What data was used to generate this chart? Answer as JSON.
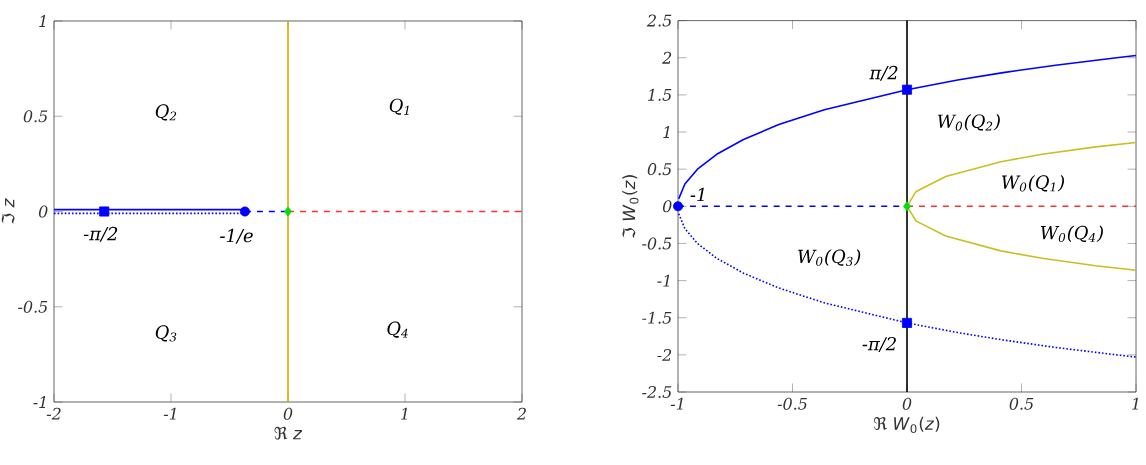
{
  "chart_data": [
    {
      "type": "line",
      "xlabel": "ℜ *z*",
      "ylabel": "ℑ *z*",
      "xlim": [
        -2,
        2
      ],
      "ylim": [
        -1,
        1
      ],
      "xticks": [
        -2,
        -1,
        0,
        1,
        2
      ],
      "yticks": [
        -1,
        -0.5,
        0,
        0.5,
        1
      ],
      "series": [
        {
          "color": "#0000ff",
          "line_style": "solid",
          "x": [
            -2,
            -0.3679
          ],
          "values": [
            0.01,
            0.01
          ]
        },
        {
          "color": "#0000ff",
          "line_style": "dotted",
          "x": [
            -2,
            -0.3679
          ],
          "values": [
            -0.01,
            -0.01
          ]
        },
        {
          "color": "#0000ff",
          "line_style": "dashed",
          "x": [
            -0.3679,
            0
          ],
          "values": [
            0,
            0
          ]
        },
        {
          "color": "#ff3030",
          "line_style": "dashed",
          "x": [
            0,
            2
          ],
          "values": [
            0,
            0
          ]
        },
        {
          "color": "#d4b000",
          "line_style": "solid",
          "x": [
            0,
            0
          ],
          "values": [
            -1,
            1
          ]
        },
        {
          "type": "scatter",
          "color": "#0000ff",
          "marker": "square",
          "x": [
            -1.5708
          ],
          "values": [
            0
          ]
        },
        {
          "type": "scatter",
          "color": "#0000ff",
          "marker": "circle",
          "x": [
            -0.3679
          ],
          "values": [
            0
          ]
        },
        {
          "type": "scatter",
          "color": "#00e000",
          "marker": "diamond",
          "x": [
            0
          ],
          "values": [
            0
          ]
        }
      ],
      "annotations": [
        "Q$_{2}$",
        "Q$_{1}$",
        "Q$_{3}$",
        "Q$_{4}$",
        "-π/2",
        "-1/e"
      ]
    },
    {
      "type": "line",
      "xlabel": "ℜ *W*$_{0}$(*z*)",
      "ylabel": "ℑ *W*$_{0}$(*z*)",
      "xlim": [
        -1,
        1
      ],
      "ylim": [
        -2.5,
        2.5
      ],
      "xticks": [
        -1,
        -0.5,
        0,
        0.5,
        1
      ],
      "yticks": [
        -2.5,
        -2,
        -1.5,
        -1,
        -0.5,
        0,
        0.5,
        1,
        1.5,
        2,
        2.5
      ],
      "series": [
        {
          "color": "#0000ff",
          "line_style": "solid",
          "x": [
            -0.997,
            -0.97,
            -0.915,
            -0.831,
            -0.714,
            -0.56,
            -0.361,
            0,
            0.221,
            0.42,
            0.649,
            0.915,
            1.0
          ],
          "values": [
            0.1,
            0.3,
            0.5,
            0.7,
            0.9,
            1.1,
            1.3,
            1.57,
            1.7,
            1.8,
            1.9,
            2.0,
            2.03
          ]
        },
        {
          "color": "#0000ff",
          "line_style": "dotted",
          "x": [
            -0.997,
            -0.97,
            -0.915,
            -0.831,
            -0.714,
            -0.56,
            -0.361,
            0,
            0.221,
            0.42,
            0.649,
            0.915,
            1.0
          ],
          "values": [
            -0.1,
            -0.3,
            -0.5,
            -0.7,
            -0.9,
            -1.1,
            -1.3,
            -1.57,
            -1.7,
            -1.8,
            -1.9,
            -2.0,
            -2.03
          ]
        },
        {
          "color": "#0000ff",
          "line_style": "dashed",
          "x": [
            -1,
            0
          ],
          "values": [
            0,
            0
          ]
        },
        {
          "color": "#ff3030",
          "line_style": "dashed",
          "x": [
            0,
            1
          ],
          "values": [
            0,
            0
          ]
        },
        {
          "color": "#c8c020",
          "line_style": "solid",
          "x": [
            0,
            0.04,
            0.169,
            0.41,
            0.59,
            0.824,
            1.0
          ],
          "values": [
            0,
            0.2,
            0.4,
            0.6,
            0.7,
            0.8,
            0.86
          ]
        },
        {
          "color": "#c8c020",
          "line_style": "solid",
          "x": [
            0,
            0.04,
            0.169,
            0.41,
            0.59,
            0.824,
            1.0
          ],
          "values": [
            0,
            -0.2,
            -0.4,
            -0.6,
            -0.7,
            -0.8,
            -0.86
          ]
        },
        {
          "color": "#000000",
          "line_style": "solid",
          "x": [
            0,
            0
          ],
          "values": [
            -2.5,
            2.5
          ]
        },
        {
          "type": "scatter",
          "color": "#0000ff",
          "marker": "square",
          "x": [
            0,
            0
          ],
          "values": [
            1.57,
            -1.57
          ]
        },
        {
          "type": "scatter",
          "color": "#0000ff",
          "marker": "circle",
          "x": [
            -1
          ],
          "values": [
            0
          ]
        },
        {
          "type": "scatter",
          "color": "#00e000",
          "marker": "diamond",
          "x": [
            0
          ],
          "values": [
            0
          ]
        }
      ],
      "annotations": [
        "π/2",
        "-1",
        "-π/2",
        "W$_{0}$(Q$_{2}$)",
        "W$_{0}$(Q$_{1}$)",
        "W$_{0}$(Q$_{4}$)",
        "W$_{0}$(Q$_{3}$)"
      ]
    }
  ]
}
